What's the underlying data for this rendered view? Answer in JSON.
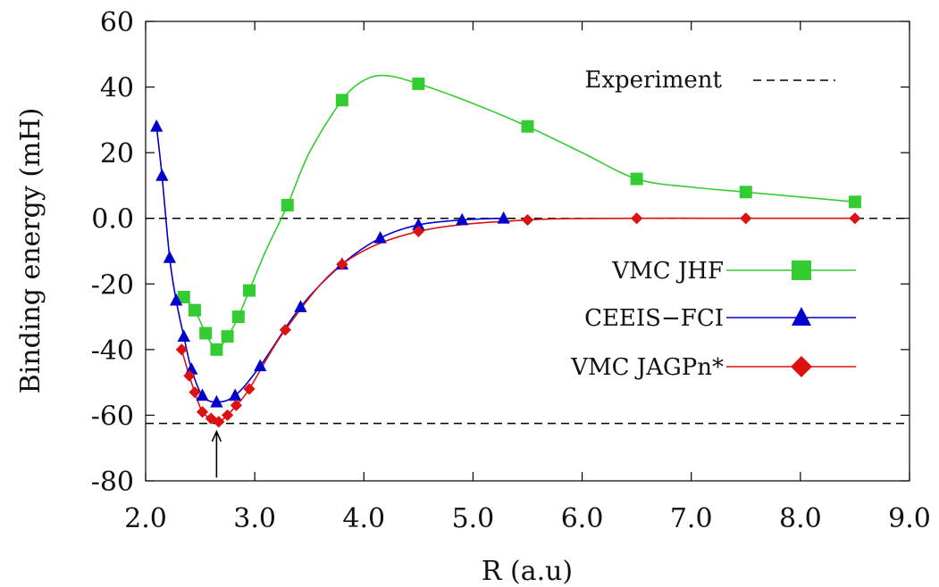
{
  "chart_data": {
    "type": "line",
    "xlabel": "R (a.u)",
    "ylabel": "Binding energy (mH)",
    "xlim": [
      2.0,
      9.0
    ],
    "ylim": [
      -80,
      60
    ],
    "xticks": [
      "2.0",
      "3.0",
      "4.0",
      "5.0",
      "6.0",
      "7.0",
      "8.0",
      "9.0"
    ],
    "xtick_values": [
      2,
      3,
      4,
      5,
      6,
      7,
      8,
      9
    ],
    "yticks": [
      "60",
      "40",
      "20",
      "0.0",
      "-20",
      "-40",
      "-60",
      "-80"
    ],
    "ytick_values": [
      60,
      40,
      20,
      0,
      -20,
      -40,
      -60,
      -80
    ],
    "legend_placement": "right",
    "reference_lines": [
      {
        "name": "Experiment",
        "y": -62.5,
        "style": "dashed",
        "color": "#000000"
      },
      {
        "name": "zero",
        "y": 0,
        "style": "dashed",
        "color": "#000000"
      }
    ],
    "arrow_marker": {
      "x": 2.65,
      "y_from": -79,
      "y_to": -65
    },
    "series": [
      {
        "name": "VMC JHF",
        "color": "#33cc33",
        "marker": "square",
        "x": [
          2.35,
          2.45,
          2.55,
          2.65,
          2.75,
          2.85,
          2.95,
          3.3,
          3.8,
          4.5,
          5.5,
          6.5,
          7.5,
          8.5
        ],
        "y": [
          -24,
          -28,
          -35,
          -40,
          -36,
          -30,
          -22,
          4,
          36,
          41,
          28,
          12,
          8,
          5
        ],
        "curve_x": [
          2.35,
          2.45,
          2.55,
          2.65,
          2.75,
          2.85,
          2.95,
          3.1,
          3.3,
          3.5,
          3.8,
          4.0,
          4.2,
          4.5,
          5.0,
          5.5,
          6.0,
          6.5,
          7.0,
          7.5,
          8.0,
          8.5
        ],
        "curve_y": [
          -24,
          -28,
          -35,
          -40,
          -36,
          -30,
          -22,
          -10,
          4,
          20,
          36,
          42,
          43.5,
          41,
          35,
          28,
          20,
          12,
          9.5,
          8,
          6.5,
          5
        ]
      },
      {
        "name": "CEEIS−FCI",
        "color": "#0000cc",
        "marker": "triangle",
        "x": [
          2.1,
          2.15,
          2.22,
          2.28,
          2.35,
          2.42,
          2.52,
          2.65,
          2.82,
          3.05,
          3.42,
          3.8,
          4.15,
          4.5,
          4.9,
          5.28
        ],
        "y": [
          28,
          13,
          -12,
          -25,
          -36,
          -46,
          -54,
          -56,
          -54,
          -45,
          -27,
          -14,
          -6,
          -2,
          -0.5,
          0
        ],
        "curve_x": [
          2.1,
          2.15,
          2.22,
          2.28,
          2.35,
          2.42,
          2.52,
          2.65,
          2.82,
          3.05,
          3.42,
          3.8,
          4.15,
          4.5,
          4.9,
          5.28
        ],
        "curve_y": [
          28,
          13,
          -12,
          -25,
          -36,
          -46,
          -54,
          -56,
          -54,
          -45,
          -27,
          -14,
          -6,
          -2,
          -0.5,
          0
        ]
      },
      {
        "name": "VMC JAGPn*",
        "color": "#dd1111",
        "marker": "diamond",
        "x": [
          2.33,
          2.4,
          2.45,
          2.52,
          2.6,
          2.67,
          2.75,
          2.83,
          2.95,
          3.28,
          3.8,
          4.5,
          5.5,
          6.5,
          7.5,
          8.5
        ],
        "y": [
          -40,
          -48,
          -53,
          -59,
          -61,
          -62,
          -60,
          -57,
          -52,
          -34,
          -14,
          -4,
          -0.5,
          0,
          0,
          0
        ],
        "curve_x": [
          2.33,
          2.4,
          2.45,
          2.52,
          2.6,
          2.67,
          2.75,
          2.83,
          2.95,
          3.28,
          3.8,
          4.5,
          5.5,
          6.5,
          7.5,
          8.5
        ],
        "curve_y": [
          -40,
          -48,
          -53,
          -59,
          -61,
          -62,
          -60,
          -57,
          -52,
          -34,
          -14,
          -4,
          -0.5,
          0,
          0,
          0
        ]
      }
    ]
  }
}
